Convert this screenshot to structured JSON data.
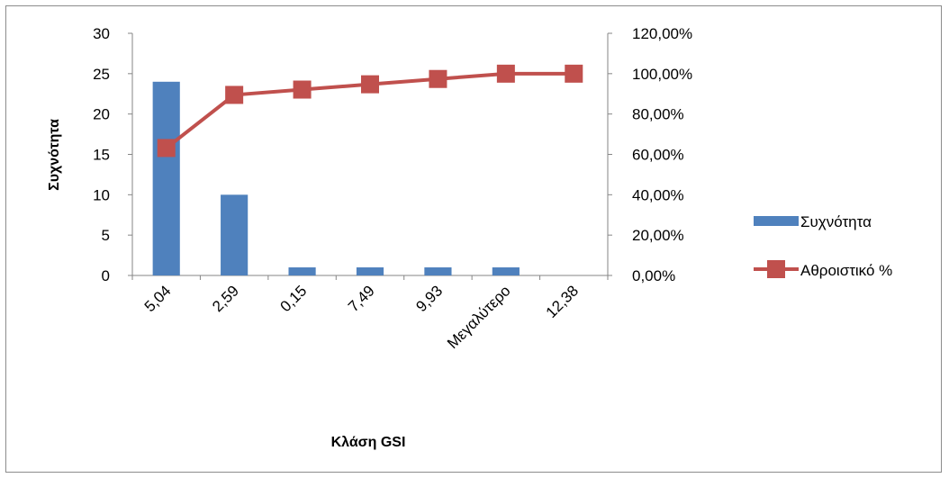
{
  "chart_data": {
    "type": "bar",
    "categories": [
      "5,04",
      "2,59",
      "0,15",
      "7,49",
      "9,93",
      "Μεγαλύτερο",
      "12,38"
    ],
    "series": [
      {
        "name": "Συχνότητα",
        "type": "bar",
        "axis": "left",
        "values": [
          24,
          10,
          1,
          1,
          1,
          1,
          0
        ],
        "color": "#4f81bd"
      },
      {
        "name": "Αθροιστικό %",
        "type": "line",
        "axis": "right",
        "values": [
          63.16,
          89.47,
          92.11,
          94.74,
          97.37,
          100.0,
          100.0
        ],
        "color": "#c0504d"
      }
    ],
    "xlabel": "Κλάση GSI",
    "ylabel": "Συχνότητα",
    "ylim": [
      0,
      30
    ],
    "yticks": [
      0,
      5,
      10,
      15,
      20,
      25,
      30
    ],
    "y2lim": [
      0,
      120
    ],
    "y2ticks": [
      "0,00%",
      "20,00%",
      "40,00%",
      "60,00%",
      "80,00%",
      "100,00%",
      "120,00%"
    ],
    "grid": false,
    "legend_position": "right"
  }
}
